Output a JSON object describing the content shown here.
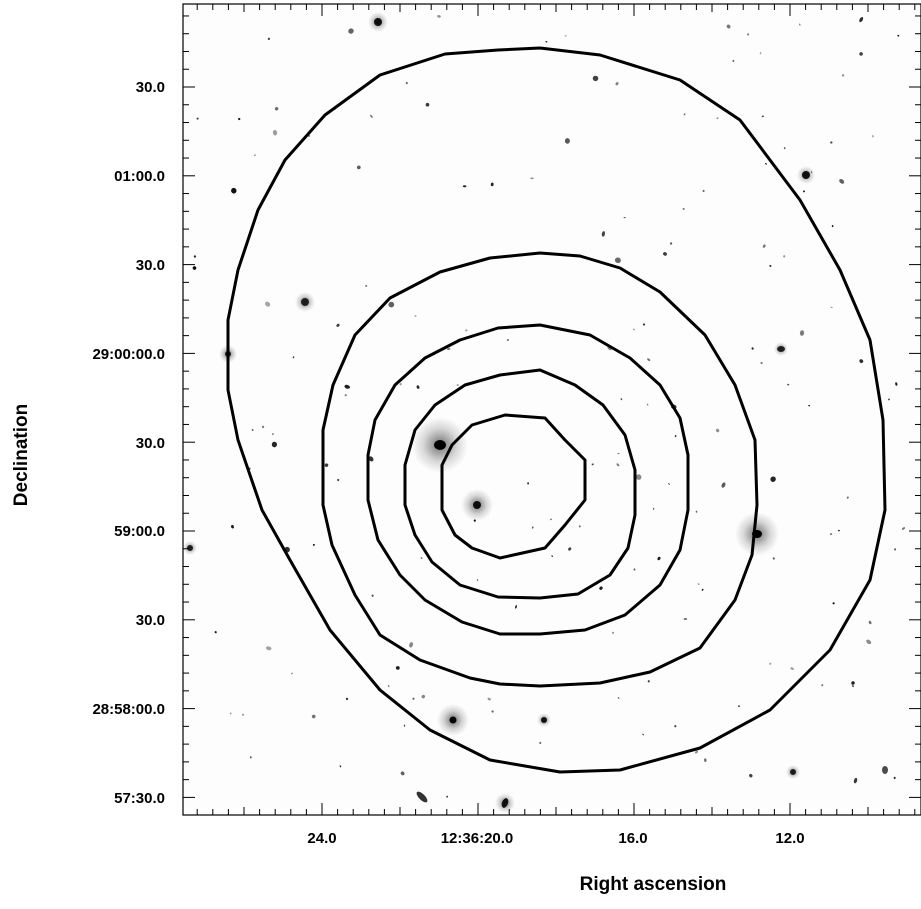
{
  "chart_data": {
    "type": "contour",
    "title": "",
    "xlabel": "Right ascension",
    "ylabel": "Declination",
    "x_tick_labels": [
      "24.0",
      "12:36:20.0",
      "16.0",
      "12.0"
    ],
    "y_tick_labels": [
      "30.0",
      "01:00.0",
      "30.0",
      "29:00:00.0",
      "30.0",
      "59:00.0",
      "30.0",
      "28:58:00.0",
      "57:30.0"
    ],
    "grid": false,
    "legend": "none",
    "contour_levels": 5,
    "contour_color": "#000000",
    "background": "greyscale optical sky image with galaxies and stars"
  }
}
